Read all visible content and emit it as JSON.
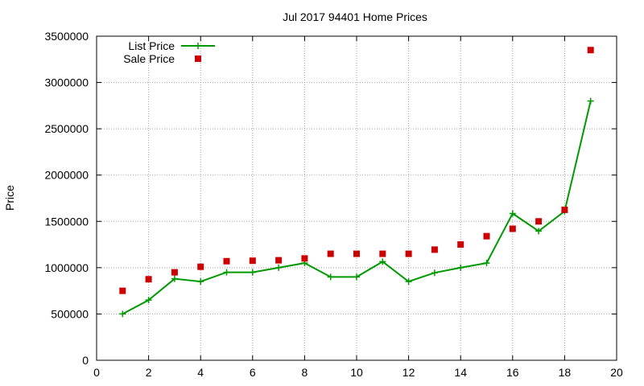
{
  "chart_data": {
    "type": "line",
    "title": "Jul 2017 94401 Home Prices",
    "xlabel": "",
    "ylabel": "Price",
    "xlim": [
      0,
      20
    ],
    "ylim": [
      0,
      3500000
    ],
    "xticks": [
      0,
      2,
      4,
      6,
      8,
      10,
      12,
      14,
      16,
      18,
      20
    ],
    "yticks": [
      0,
      500000,
      1000000,
      1500000,
      2000000,
      2500000,
      3000000,
      3500000
    ],
    "grid": true,
    "legend": "top-left",
    "x": [
      1,
      2,
      3,
      4,
      5,
      6,
      7,
      8,
      9,
      10,
      11,
      12,
      13,
      14,
      15,
      16,
      17,
      18,
      19
    ],
    "series": [
      {
        "name": "List Price",
        "style": "line+cross",
        "color": "#009900",
        "values": [
          500000,
          650000,
          880000,
          850000,
          950000,
          950000,
          1000000,
          1050000,
          900000,
          900000,
          1065000,
          850000,
          945000,
          1000000,
          1050000,
          1585000,
          1395000,
          1610000,
          2800000
        ]
      },
      {
        "name": "Sale Price",
        "style": "square-points",
        "color": "#cc0000",
        "values": [
          750000,
          875000,
          950000,
          1010000,
          1070000,
          1075000,
          1080000,
          1100000,
          1150000,
          1150000,
          1150000,
          1150000,
          1195000,
          1250000,
          1340000,
          1420000,
          1500000,
          1625000,
          3350000
        ]
      }
    ]
  }
}
